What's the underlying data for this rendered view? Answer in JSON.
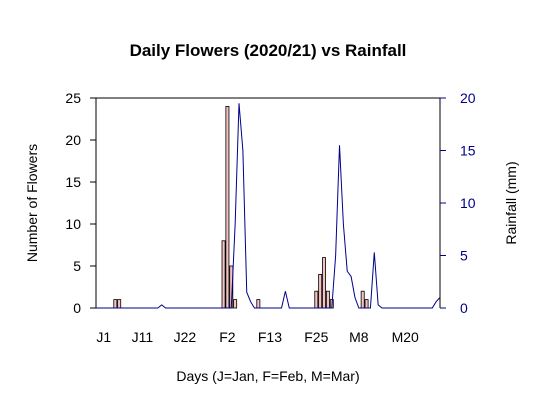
{
  "chart_data": {
    "type": "bar",
    "title": "Daily Flowers (2020/21) vs Rainfall",
    "xlabel": "Days (J=Jan, F=Feb, M=Mar)",
    "ylabel": "Number of Flowers",
    "ylabel_right": "Rainfall (mm)",
    "ylim": [
      0,
      25
    ],
    "ylim_right": [
      0,
      20
    ],
    "xlim": [
      -2,
      87
    ],
    "yticks": [
      0,
      5,
      10,
      15,
      20,
      25
    ],
    "yticks_right": [
      0,
      5,
      10,
      15,
      20
    ],
    "x_tick_labels": [
      {
        "day": 0,
        "label": "J1"
      },
      {
        "day": 10,
        "label": "J11"
      },
      {
        "day": 21,
        "label": "J22"
      },
      {
        "day": 32,
        "label": "F2"
      },
      {
        "day": 43,
        "label": "F13"
      },
      {
        "day": 55,
        "label": "F25"
      },
      {
        "day": 66,
        "label": "M8"
      },
      {
        "day": 78,
        "label": "M20"
      }
    ],
    "colors": {
      "bars": "#f4c2c2",
      "rainfall": "#00008b",
      "axis": "#000000"
    },
    "series": [
      {
        "type": "bar",
        "axis": "left",
        "values": [
          {
            "day": 3,
            "value": 1
          },
          {
            "day": 4,
            "value": 1
          },
          {
            "day": 31,
            "value": 8
          },
          {
            "day": 32,
            "value": 24
          },
          {
            "day": 33,
            "value": 5
          },
          {
            "day": 34,
            "value": 1
          },
          {
            "day": 40,
            "value": 1
          },
          {
            "day": 55,
            "value": 2
          },
          {
            "day": 56,
            "value": 4
          },
          {
            "day": 57,
            "value": 6
          },
          {
            "day": 58,
            "value": 2
          },
          {
            "day": 59,
            "value": 1
          },
          {
            "day": 67,
            "value": 2
          },
          {
            "day": 68,
            "value": 1
          }
        ]
      },
      {
        "type": "line",
        "axis": "right",
        "points": [
          {
            "day": -2,
            "value": 0
          },
          {
            "day": 14,
            "value": 0
          },
          {
            "day": 15,
            "value": 0.3
          },
          {
            "day": 16,
            "value": 0
          },
          {
            "day": 33,
            "value": 0
          },
          {
            "day": 34,
            "value": 8
          },
          {
            "day": 35,
            "value": 19.5
          },
          {
            "day": 36,
            "value": 15
          },
          {
            "day": 37,
            "value": 1.5
          },
          {
            "day": 38,
            "value": 0.6
          },
          {
            "day": 39,
            "value": 0
          },
          {
            "day": 46,
            "value": 0
          },
          {
            "day": 47,
            "value": 1.6
          },
          {
            "day": 48,
            "value": 0
          },
          {
            "day": 59,
            "value": 0
          },
          {
            "day": 60,
            "value": 5
          },
          {
            "day": 61,
            "value": 15.5
          },
          {
            "day": 62,
            "value": 8
          },
          {
            "day": 63,
            "value": 3.5
          },
          {
            "day": 64,
            "value": 3
          },
          {
            "day": 65,
            "value": 1
          },
          {
            "day": 66,
            "value": 0
          },
          {
            "day": 69,
            "value": 0
          },
          {
            "day": 70,
            "value": 5.3
          },
          {
            "day": 71,
            "value": 0.3
          },
          {
            "day": 72,
            "value": 0
          },
          {
            "day": 85,
            "value": 0
          },
          {
            "day": 86,
            "value": 0.6
          },
          {
            "day": 87,
            "value": 1
          }
        ]
      }
    ]
  }
}
